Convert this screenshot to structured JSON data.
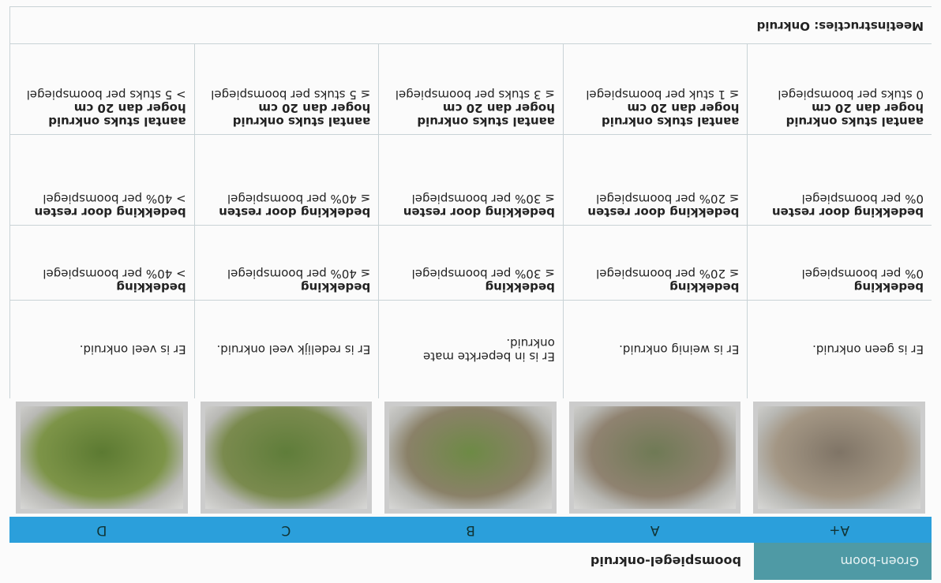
{
  "header": {
    "category": "Groen-boom",
    "title": "boomspiegel-onkruid"
  },
  "grades": [
    "A+",
    "A",
    "B",
    "C",
    "D"
  ],
  "descriptions": [
    "Er is geen onkruid.",
    "Er is weinig onkruid.",
    "Er is in beperkte mate onkruid.",
    "Er is redelijk veel onkruid.",
    "Er is veel onkruid."
  ],
  "rows": [
    {
      "cells": [
        {
          "label": "bedekking",
          "text": "0% per boomspiegel"
        },
        {
          "label": "bedekking",
          "text": "≤ 20% per boomspiegel"
        },
        {
          "label": "bedekking",
          "text": "≤ 30% per boomspiegel"
        },
        {
          "label": "bedekking",
          "text": "≤ 40% per boomspiegel"
        },
        {
          "label": "bedekking",
          "text": "> 40% per boomspiegel"
        }
      ]
    },
    {
      "cells": [
        {
          "label": "bedekking door resten",
          "text": "0% per boomspiegel"
        },
        {
          "label": "bedekking door resten",
          "text": "≤ 20% per boomspiegel"
        },
        {
          "label": "bedekking door resten",
          "text": "≤ 30% per boomspiegel"
        },
        {
          "label": "bedekking door resten",
          "text": "≤ 40% per boomspiegel"
        },
        {
          "label": "bedekking door resten",
          "text": "> 40% per boomspiegel"
        }
      ]
    },
    {
      "cells": [
        {
          "label": "aantal stuks onkruid hoger dan 20 cm",
          "text": "0 stuks per boomspiegel"
        },
        {
          "label": "aantal stuks onkruid hoger dan 20 cm",
          "text": "≤ 1 stuk per boomspiegel"
        },
        {
          "label": "aantal stuks onkruid hoger dan 20 cm",
          "text": "≤ 3 stuks per boomspiegel"
        },
        {
          "label": "aantal stuks onkruid hoger dan 20 cm",
          "text": "≤ 5 stuks per boomspiegel"
        },
        {
          "label": "aantal stuks onkruid hoger dan 20 cm",
          "text": "> 5 stuks per boomspiegel"
        }
      ]
    }
  ],
  "footer": "Meetinstructies: Onkruid"
}
